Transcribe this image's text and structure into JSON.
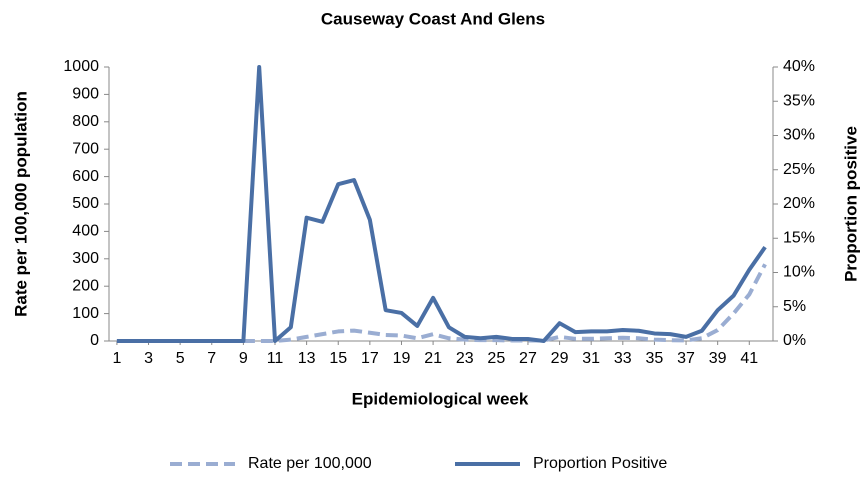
{
  "chart_data": {
    "type": "line",
    "title": "Causeway Coast And Glens",
    "xlabel": "Epidemiological week",
    "ylabel": "Rate per 100,000 population",
    "y2label": "Proportion positive",
    "x": [
      1,
      2,
      3,
      4,
      5,
      6,
      7,
      8,
      9,
      10,
      11,
      12,
      13,
      14,
      15,
      16,
      17,
      18,
      19,
      20,
      21,
      22,
      23,
      24,
      25,
      26,
      27,
      28,
      29,
      30,
      31,
      32,
      33,
      34,
      35,
      36,
      37,
      38,
      39,
      40,
      41,
      42
    ],
    "xlim": [
      0.5,
      42.5
    ],
    "xticks": [
      1,
      3,
      5,
      7,
      9,
      11,
      13,
      15,
      17,
      19,
      21,
      23,
      25,
      27,
      29,
      31,
      33,
      35,
      37,
      39,
      41
    ],
    "ylim": [
      0,
      1000
    ],
    "yticks": [
      0,
      100,
      200,
      300,
      400,
      500,
      600,
      700,
      800,
      900,
      1000
    ],
    "y2lim": [
      0,
      40
    ],
    "y2ticks": [
      {
        "value": 0,
        "label": "0%"
      },
      {
        "value": 5,
        "label": "5%"
      },
      {
        "value": 10,
        "label": "10%"
      },
      {
        "value": 15,
        "label": "15%"
      },
      {
        "value": 20,
        "label": "20%"
      },
      {
        "value": 25,
        "label": "25%"
      },
      {
        "value": 30,
        "label": "30%"
      },
      {
        "value": 35,
        "label": "35%"
      },
      {
        "value": 40,
        "label": "40%"
      }
    ],
    "legend": "bottom",
    "series": [
      {
        "name": "Rate per 100,000",
        "color": "#9aadd2",
        "dashed": true,
        "values": [
          0,
          0,
          0,
          0,
          0,
          0,
          0,
          0,
          0,
          0,
          0,
          5,
          15,
          25,
          35,
          38,
          30,
          22,
          20,
          10,
          25,
          10,
          5,
          3,
          3,
          2,
          2,
          2,
          15,
          8,
          8,
          10,
          12,
          10,
          5,
          3,
          2,
          10,
          40,
          100,
          170,
          280
        ]
      },
      {
        "name": "Proportion Positive",
        "color": "#4a6fa5",
        "axis": "y2",
        "values": [
          0,
          0,
          0,
          0,
          0,
          0,
          0,
          0,
          0,
          40,
          0,
          2,
          18,
          17.4,
          22.9,
          23.5,
          17.7,
          4.5,
          4.1,
          2.2,
          6.3,
          2,
          0.6,
          0.4,
          0.6,
          0.3,
          0.3,
          0,
          2.6,
          1.3,
          1.4,
          1.4,
          1.6,
          1.5,
          1.1,
          1,
          0.6,
          1.5,
          4.5,
          6.6,
          10.4,
          13.7
        ]
      }
    ]
  }
}
